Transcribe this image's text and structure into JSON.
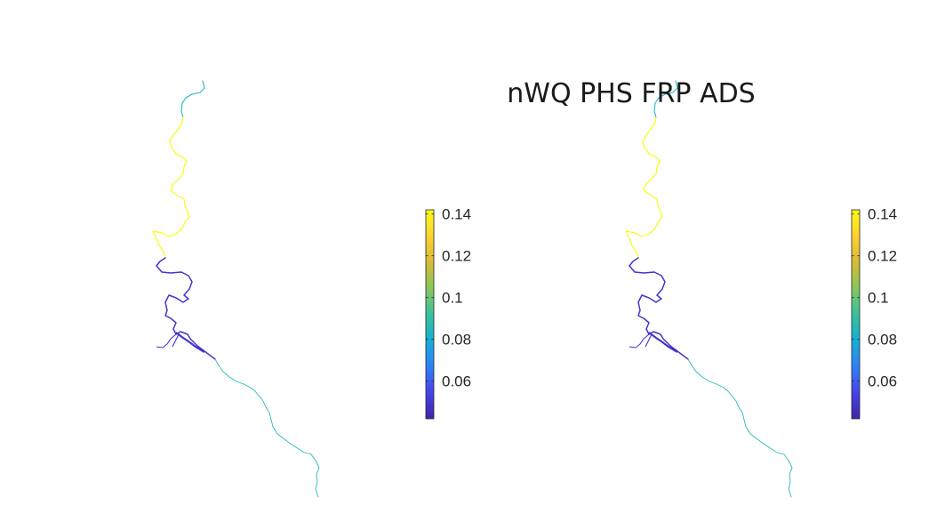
{
  "figure": {
    "title": "nWQ PHS FRP ADS"
  },
  "colormap": {
    "name": "parula",
    "stops": [
      "#3e26a8",
      "#4643e9",
      "#2f81f8",
      "#14b0d6",
      "#39c19a",
      "#87c75b",
      "#d9ba39",
      "#fed22f",
      "#f9fb15"
    ]
  },
  "colorbar": {
    "min": 0.042,
    "max": 0.142,
    "tick_labels": [
      "0.14",
      "0.12",
      "0.1",
      "0.08",
      "0.06"
    ],
    "tick_values": [
      0.14,
      0.12,
      0.1,
      0.08,
      0.06
    ]
  },
  "panels": [
    {
      "name": "left-map"
    },
    {
      "name": "right-map"
    }
  ],
  "river_segments": [
    {
      "segment": "upper-reach",
      "value": 0.083
    },
    {
      "segment": "middle-upper-reach",
      "value": 0.142
    },
    {
      "segment": "middle-lower-reach",
      "value": 0.049
    },
    {
      "segment": "lower-reach",
      "value": 0.086
    }
  ]
}
